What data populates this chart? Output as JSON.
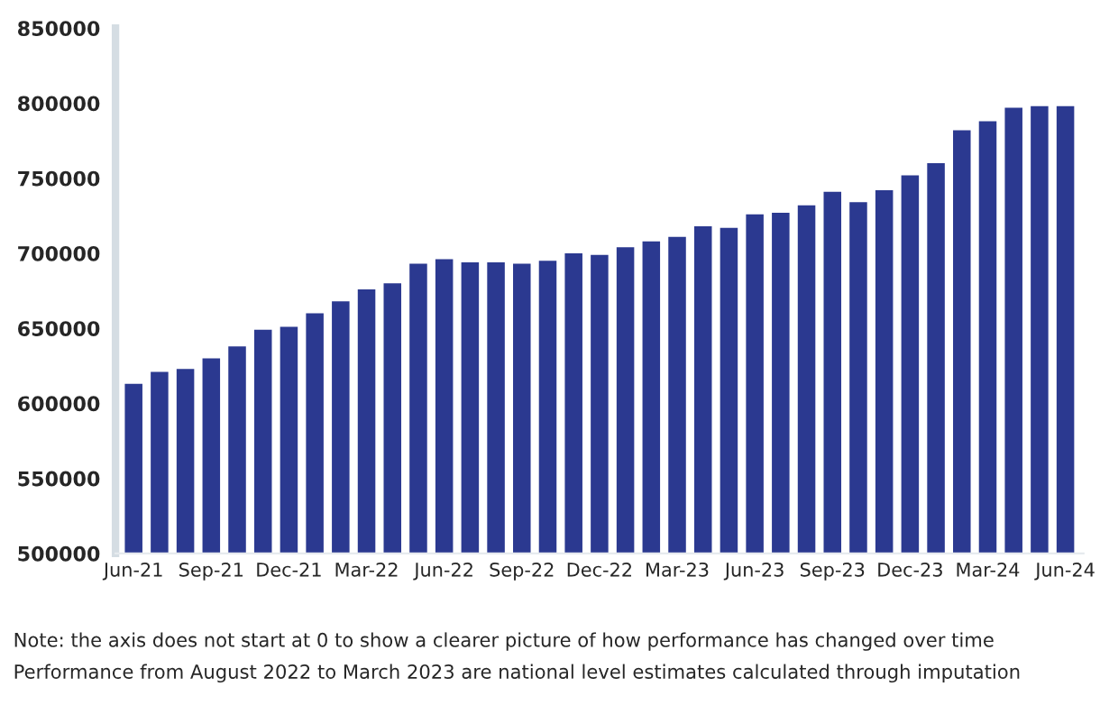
{
  "chart_data": {
    "type": "bar",
    "categories": [
      "Jun-21",
      null,
      null,
      "Sep-21",
      null,
      null,
      "Dec-21",
      null,
      null,
      "Mar-22",
      null,
      null,
      "Jun-22",
      null,
      null,
      "Sep-22",
      null,
      null,
      "Dec-22",
      null,
      null,
      "Mar-23",
      null,
      null,
      "Jun-23",
      null,
      null,
      "Sep-23",
      null,
      null,
      "Dec-23",
      null,
      null,
      "Mar-24",
      null,
      null,
      "Jun-24"
    ],
    "values": [
      613000,
      621000,
      623000,
      630000,
      638000,
      649000,
      651000,
      660000,
      668000,
      676000,
      680000,
      693000,
      696000,
      694000,
      694000,
      693000,
      695000,
      700000,
      699000,
      704000,
      708000,
      711000,
      718000,
      717000,
      726000,
      727000,
      732000,
      741000,
      734000,
      742000,
      752000,
      760000,
      782000,
      788000,
      797000,
      798000,
      798000
    ],
    "color": "#2b3990",
    "ylim": [
      500000,
      850000
    ],
    "yticks": [
      500000,
      550000,
      600000,
      650000,
      700000,
      750000,
      800000,
      850000
    ],
    "grid": false,
    "annotations": [
      "Note: the axis does not start at 0 to show a clearer picture of how performance has changed over time",
      "Performance from August 2022 to March 2023 are national level estimates calculated through imputation"
    ]
  }
}
